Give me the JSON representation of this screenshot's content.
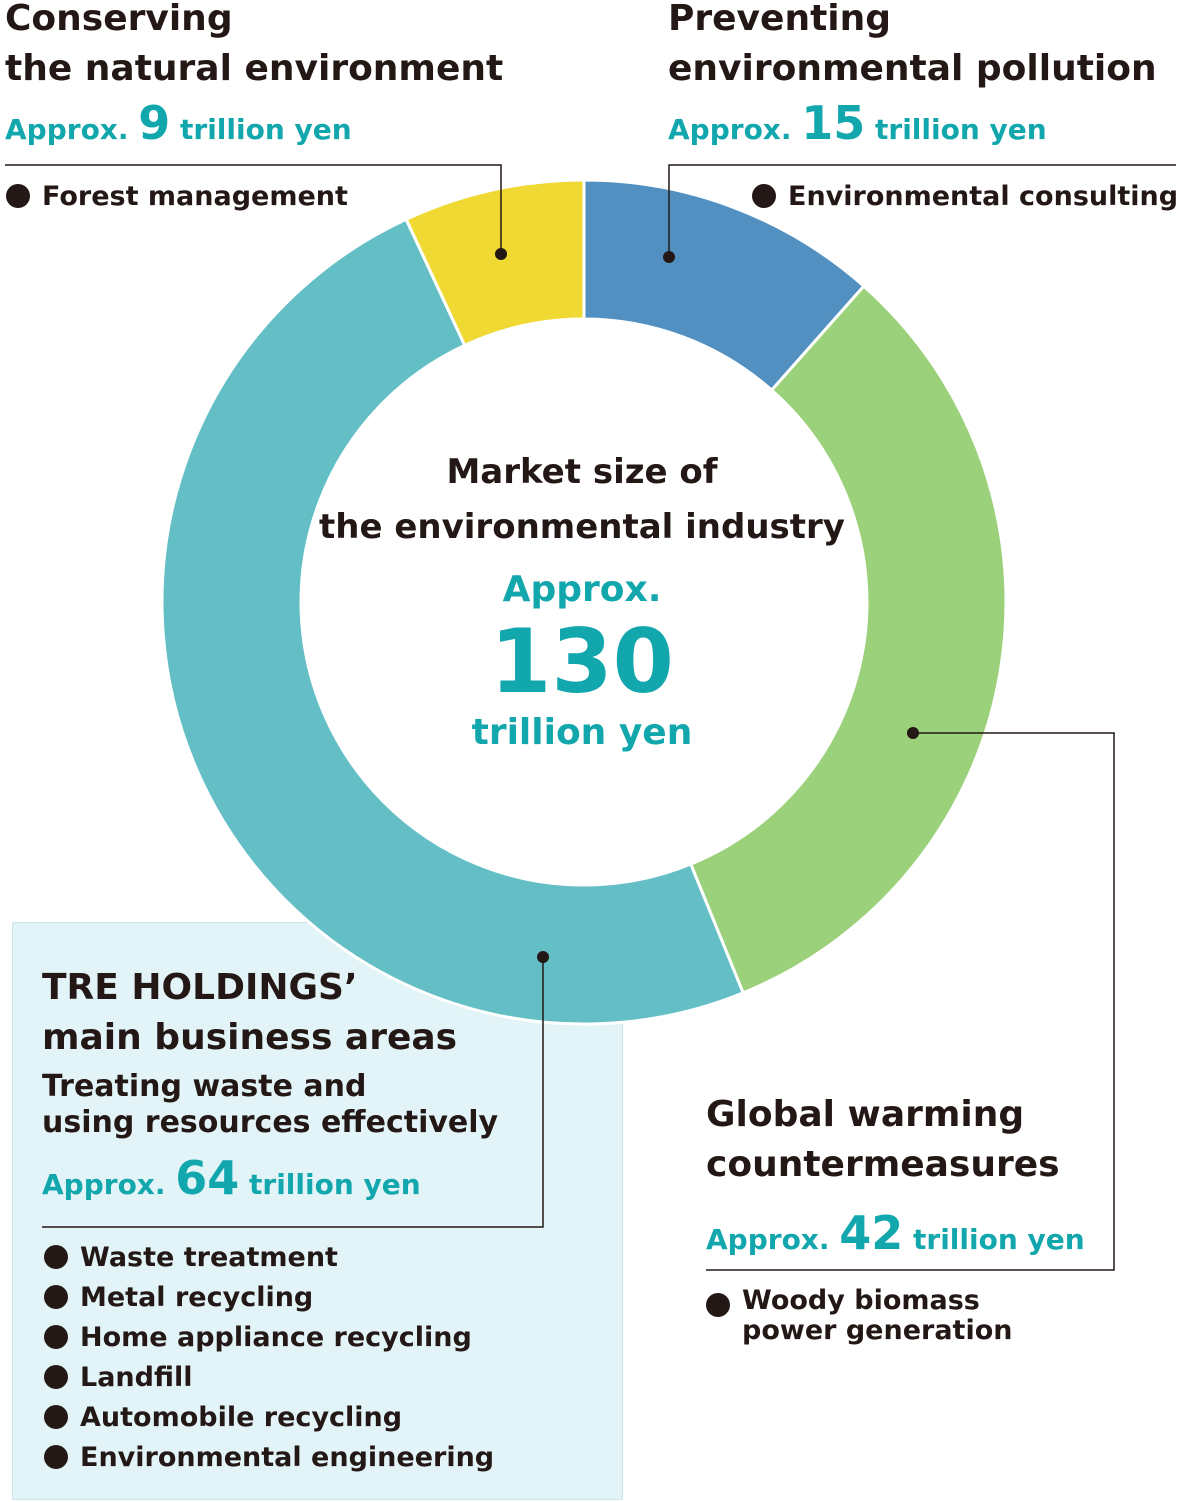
{
  "chart_data": {
    "type": "pie",
    "title": "Market size of the environmental industry",
    "total": {
      "prefix": "Approx.",
      "value": "130",
      "unit": "trillion yen"
    },
    "categories": [
      "Conserving the natural environment",
      "Preventing environmental pollution",
      "Global warming countermeasures",
      "Treating waste and using resources effectively"
    ],
    "values": [
      9,
      15,
      42,
      64
    ],
    "unit": "trillion yen",
    "colors": [
      "#efd932",
      "#5190c1",
      "#9bd17a",
      "#63bec6"
    ]
  },
  "center": {
    "line1": "Market size of",
    "line2": "the environmental industry",
    "approx": "Approx.",
    "value": "130",
    "unit": "trillion yen"
  },
  "conserving": {
    "title1": "Conserving",
    "title2": "the natural environment",
    "approx": "Approx.",
    "value": "9",
    "unit": "trillion yen",
    "items": [
      "Forest management"
    ]
  },
  "preventing": {
    "title1": "Preventing",
    "title2": "environmental pollution",
    "approx": "Approx.",
    "value": "15",
    "unit": "trillion yen",
    "items": [
      "Environmental consulting"
    ]
  },
  "warming": {
    "title1": "Global warming",
    "title2": "countermeasures",
    "approx": "Approx.",
    "value": "42",
    "unit": "trillion yen",
    "items": [
      "Woody biomass\npower generation"
    ]
  },
  "main": {
    "heading1": "TRE HOLDINGS’",
    "heading2": "main business areas",
    "sub1": "Treating waste and",
    "sub2": "using resources effectively",
    "approx": "Approx.",
    "value": "64",
    "unit": "trillion yen",
    "items": [
      "Waste treatment",
      "Metal recycling",
      "Home appliance recycling",
      "Landfill",
      "Automobile recycling",
      "Environmental engineering"
    ]
  },
  "colors": {
    "accent": "#12a6ad",
    "text": "#231815",
    "box_bg": "#e2f4f7",
    "leader": "#231815"
  }
}
